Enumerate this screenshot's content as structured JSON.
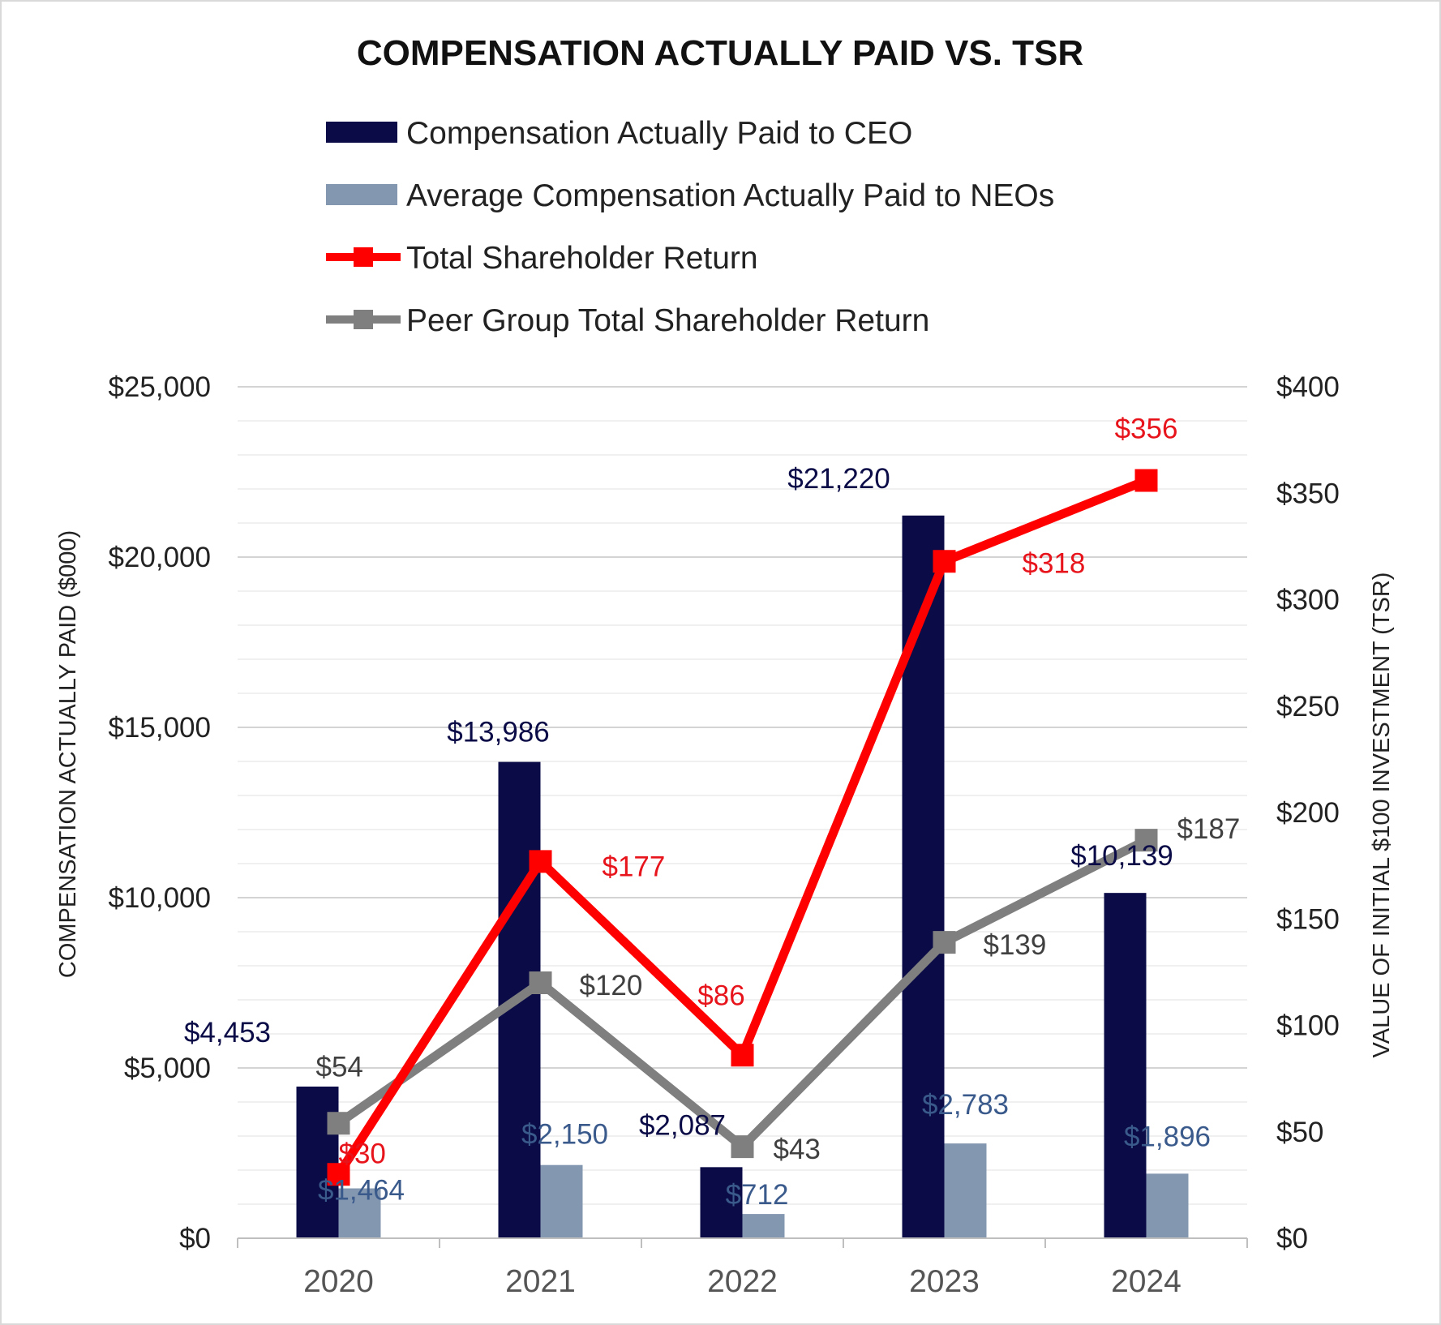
{
  "chart_data": {
    "type": "bar",
    "title": "COMPENSATION ACTUALLY PAID VS. TSR",
    "categories": [
      "2020",
      "2021",
      "2022",
      "2023",
      "2024"
    ],
    "ylabel": "COMPENSATION ACTUALLY PAID ($000)",
    "ylim": [
      0,
      25000
    ],
    "yticks": [
      0,
      5000,
      10000,
      15000,
      20000,
      25000
    ],
    "ytick_labels": [
      "$0",
      "$5,000",
      "$10,000",
      "$15,000",
      "$20,000",
      "$25,000"
    ],
    "y2label": "VALUE OF INITIAL $100 INVESTMENT (TSR)",
    "y2lim": [
      0,
      400
    ],
    "y2ticks": [
      0,
      50,
      100,
      150,
      200,
      250,
      300,
      350,
      400
    ],
    "y2tick_labels": [
      "$0",
      "$50",
      "$100",
      "$150",
      "$200",
      "$250",
      "$300",
      "$350",
      "$400"
    ],
    "legend_position": "top",
    "grid": true,
    "series": [
      {
        "name": "Compensation Actually Paid to CEO",
        "kind": "bar",
        "axis": "left",
        "color": "#0b0c47",
        "label_color": "#0b0c47",
        "values": [
          4453,
          13986,
          2087,
          21220,
          10139
        ],
        "labels": [
          "$4,453",
          "$13,986",
          "$2,087",
          "$21,220",
          "$10,139"
        ]
      },
      {
        "name": "Average Compensation Actually Paid to NEOs",
        "kind": "bar",
        "axis": "left",
        "color": "#8497b0",
        "label_color": "#3a5a8c",
        "values": [
          1464,
          2150,
          712,
          2783,
          1896
        ],
        "labels": [
          "$1,464",
          "$2,150",
          "$712",
          "$2,783",
          "$1,896"
        ]
      },
      {
        "name": "Total Shareholder Return",
        "kind": "line",
        "axis": "right",
        "color": "#ff0000",
        "label_color": "#e8141c",
        "values": [
          30,
          177,
          86,
          318,
          356
        ],
        "labels": [
          "$30",
          "$177",
          "$86",
          "$318",
          "$356"
        ]
      },
      {
        "name": "Peer Group Total Shareholder Return",
        "kind": "line",
        "axis": "right",
        "color": "#7f7f7f",
        "label_color": "#404040",
        "values": [
          54,
          120,
          43,
          139,
          187
        ],
        "labels": [
          "$54",
          "$120",
          "$43",
          "$139",
          "$187"
        ]
      }
    ]
  }
}
